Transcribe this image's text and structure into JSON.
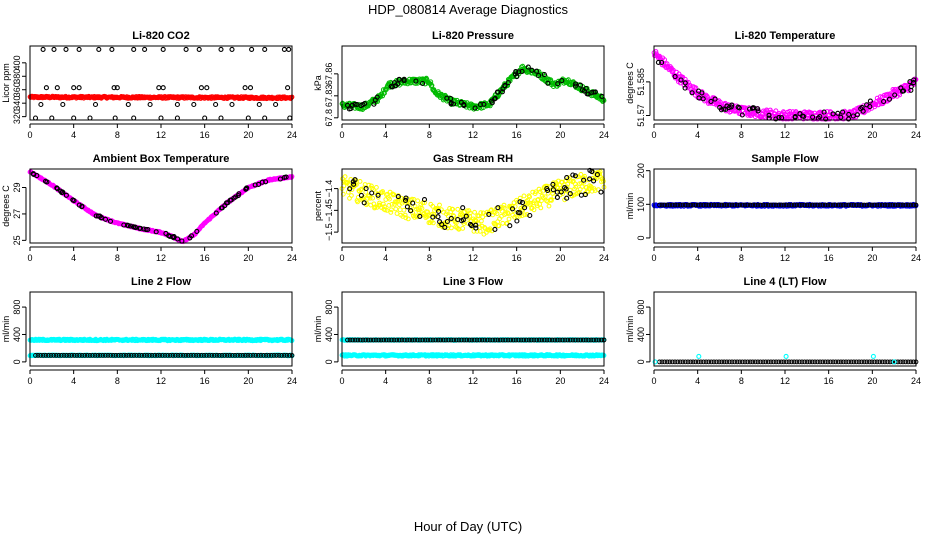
{
  "figure": {
    "title": "HDP_080814  Average Diagnostics",
    "xlabel": "Hour of Day (UTC)"
  },
  "chart_data": [
    {
      "type": "scatter",
      "title": "Li-820 CO2",
      "ylabel": "Licor ppm",
      "xlim": [
        0,
        24
      ],
      "ylim": [
        315,
        425
      ],
      "xticks": [
        0,
        4,
        8,
        12,
        16,
        20,
        24
      ],
      "yticks": [
        320,
        340,
        360,
        380,
        400
      ],
      "series": [
        {
          "name": "averages",
          "color": "#000000",
          "kind": "scatter",
          "x": [
            1.2,
            2.2,
            3.3,
            4.5,
            6.3,
            7.5,
            9.5,
            10.5,
            12.2,
            14.3,
            15.5,
            17.5,
            18.5,
            20.3,
            21.5,
            23.3,
            23.7
          ],
          "y": [
            420,
            420,
            420,
            420,
            420,
            420,
            420,
            420,
            420,
            420,
            420,
            420,
            420,
            420,
            420,
            420,
            420
          ]
        },
        {
          "name": "averages",
          "color": "#000000",
          "kind": "scatter",
          "x": [
            1.5,
            2.5,
            4.0,
            4.5,
            7.7,
            8.0,
            11.8,
            12.2,
            15.7,
            16.2,
            19.7,
            20.2,
            23.6
          ],
          "y": [
            363,
            363,
            363,
            363,
            363,
            363,
            363,
            363,
            363,
            363,
            363,
            363,
            363
          ]
        },
        {
          "name": "averages",
          "color": "#000000",
          "kind": "scatter",
          "x": [
            1.0,
            3.0,
            6.0,
            9.0,
            11.0,
            13.5,
            15.0,
            17.0,
            18.5,
            21.0,
            22.5
          ],
          "y": [
            338,
            338,
            338,
            338,
            338,
            338,
            338,
            338,
            338,
            338,
            338
          ]
        },
        {
          "name": "averages",
          "color": "#000000",
          "kind": "scatter",
          "x": [
            0.5,
            2.0,
            4.0,
            5.5,
            7.8,
            9.5,
            12.0,
            13.5,
            16.0,
            17.5,
            20.0,
            21.5,
            23.8
          ],
          "y": [
            318,
            318,
            318,
            318,
            318,
            318,
            318,
            318,
            318,
            318,
            318,
            318,
            318
          ]
        },
        {
          "name": "raw",
          "color": "#ff0000",
          "kind": "band",
          "x": [
            0,
            24
          ],
          "y": [
            349,
            348
          ],
          "spread": 1.5
        }
      ]
    },
    {
      "type": "scatter",
      "title": "Li-820 Pressure",
      "ylabel": "kPa",
      "xlim": [
        0,
        24
      ],
      "ylim": [
        67.797,
        67.898
      ],
      "xticks": [
        0,
        4,
        8,
        12,
        16,
        20,
        24
      ],
      "yticks": [
        67.8,
        67.83,
        67.86
      ],
      "series": [
        {
          "name": "raw",
          "color": "#00bb00",
          "kind": "band",
          "x": [
            0,
            2,
            3.5,
            4.2,
            6,
            8,
            8.5,
            10,
            12,
            13.5,
            15,
            16.5,
            18,
            19.5,
            20.5,
            22,
            24
          ],
          "y": [
            67.817,
            67.815,
            67.828,
            67.845,
            67.85,
            67.85,
            67.835,
            67.822,
            67.815,
            67.818,
            67.845,
            67.868,
            67.86,
            67.845,
            67.852,
            67.84,
            67.825
          ],
          "spread": 0.004
        }
      ]
    },
    {
      "type": "scatter",
      "title": "Li-820 Temperature",
      "ylabel": "degrees C",
      "xlim": [
        0,
        24
      ],
      "ylim": [
        51.568,
        51.601
      ],
      "xticks": [
        0,
        4,
        8,
        12,
        16,
        20,
        24
      ],
      "yticks": [
        51.57,
        51.585
      ],
      "series": [
        {
          "name": "raw",
          "color": "#ff00ff",
          "kind": "band",
          "x": [
            0,
            1,
            2,
            3,
            4,
            5,
            6,
            7,
            8,
            10,
            12,
            14,
            16,
            18,
            19,
            20,
            21,
            22,
            23,
            24
          ],
          "y": [
            51.598,
            51.593,
            51.588,
            51.584,
            51.58,
            51.577,
            51.575,
            51.573,
            51.572,
            51.571,
            51.57,
            51.57,
            51.57,
            51.57,
            51.572,
            51.575,
            51.577,
            51.58,
            51.582,
            51.585
          ],
          "spread": 0.002
        }
      ]
    },
    {
      "type": "scatter",
      "title": "Ambient Box Temperature",
      "ylabel": "degrees C",
      "xlim": [
        0,
        24
      ],
      "ylim": [
        24.8,
        30.4
      ],
      "xticks": [
        0,
        4,
        8,
        12,
        16,
        20,
        24
      ],
      "yticks": [
        25,
        27,
        29
      ],
      "series": [
        {
          "name": "raw",
          "color": "#ff00ff",
          "kind": "band",
          "x": [
            0,
            2,
            4,
            6,
            8,
            10,
            12,
            13,
            14,
            15,
            16,
            18,
            20,
            22,
            24
          ],
          "y": [
            30.2,
            29.2,
            28.0,
            26.9,
            26.3,
            25.9,
            25.6,
            25.3,
            24.9,
            25.4,
            26.3,
            27.8,
            29.0,
            29.6,
            29.8
          ],
          "spread": 0.05
        }
      ]
    },
    {
      "type": "scatter",
      "title": "Gas Stream RH",
      "ylabel": "percent",
      "xlim": [
        0,
        24
      ],
      "ylim": [
        -1.525,
        -1.355
      ],
      "xticks": [
        0,
        4,
        8,
        12,
        16,
        20,
        24
      ],
      "yticks": [
        -1.5,
        -1.45,
        -1.4
      ],
      "series": [
        {
          "name": "raw",
          "color": "#ffff00",
          "kind": "band",
          "x": [
            0,
            2,
            4,
            6,
            8,
            10,
            12,
            13,
            14,
            16,
            18,
            20,
            22,
            24
          ],
          "y": [
            -1.395,
            -1.41,
            -1.43,
            -1.445,
            -1.455,
            -1.47,
            -1.475,
            -1.48,
            -1.47,
            -1.45,
            -1.425,
            -1.405,
            -1.39,
            -1.38
          ],
          "spread": 0.025
        }
      ]
    },
    {
      "type": "scatter",
      "title": "Sample Flow",
      "ylabel": "ml/min",
      "xlim": [
        0,
        24
      ],
      "ylim": [
        -15,
        205
      ],
      "xticks": [
        0,
        4,
        8,
        12,
        16,
        20,
        24
      ],
      "yticks": [
        0,
        100,
        200
      ],
      "series": [
        {
          "name": "raw",
          "color": "#0000ff",
          "kind": "band",
          "x": [
            0,
            24
          ],
          "y": [
            97,
            97
          ],
          "spread": 3
        },
        {
          "name": "averages",
          "color": "#000000",
          "kind": "dense",
          "x": [
            0.5,
            24
          ],
          "y": [
            98,
            98
          ],
          "count": 100
        }
      ]
    },
    {
      "type": "scatter",
      "title": "Line 2 Flow",
      "ylabel": "ml/min",
      "xlim": [
        0,
        24
      ],
      "ylim": [
        -60,
        1020
      ],
      "xticks": [
        0,
        4,
        8,
        12,
        16,
        20,
        24
      ],
      "yticks": [
        0,
        400,
        800
      ],
      "series": [
        {
          "name": "raw",
          "color": "#00ffff",
          "kind": "band",
          "x": [
            0,
            24
          ],
          "y": [
            320,
            320
          ],
          "spread": 12
        },
        {
          "name": "raw",
          "color": "#00ffff",
          "kind": "band",
          "x": [
            0,
            24
          ],
          "y": [
            95,
            95
          ],
          "spread": 6
        },
        {
          "name": "averages",
          "color": "#000000",
          "kind": "dense",
          "x": [
            0.5,
            24
          ],
          "y": [
            95,
            95
          ],
          "count": 100
        }
      ]
    },
    {
      "type": "scatter",
      "title": "Line 3 Flow",
      "ylabel": "ml/min",
      "xlim": [
        0,
        24
      ],
      "ylim": [
        -60,
        1020
      ],
      "xticks": [
        0,
        4,
        8,
        12,
        16,
        20,
        24
      ],
      "yticks": [
        0,
        400,
        800
      ],
      "series": [
        {
          "name": "raw",
          "color": "#00ffff",
          "kind": "band",
          "x": [
            0,
            24
          ],
          "y": [
            95,
            95
          ],
          "spread": 12
        },
        {
          "name": "raw",
          "color": "#00ffff",
          "kind": "band",
          "x": [
            0,
            24
          ],
          "y": [
            320,
            320
          ],
          "spread": 6
        },
        {
          "name": "averages",
          "color": "#000000",
          "kind": "dense",
          "x": [
            0.5,
            24
          ],
          "y": [
            320,
            320
          ],
          "count": 100
        }
      ]
    },
    {
      "type": "scatter",
      "title": "Line 4 (LT) Flow",
      "ylabel": "ml/min",
      "xlim": [
        0,
        24
      ],
      "ylim": [
        -60,
        1020
      ],
      "xticks": [
        0,
        4,
        8,
        12,
        16,
        20,
        24
      ],
      "yticks": [
        0,
        400,
        800
      ],
      "series": [
        {
          "name": "averages",
          "color": "#000000",
          "kind": "dense",
          "x": [
            0.5,
            24
          ],
          "y": [
            0,
            0
          ],
          "count": 100
        },
        {
          "name": "raw",
          "color": "#00ffff",
          "kind": "scatter",
          "x": [
            0.1,
            4.1,
            12.1,
            20.1,
            22.0
          ],
          "y": [
            0,
            80,
            80,
            80,
            0
          ]
        }
      ]
    }
  ]
}
